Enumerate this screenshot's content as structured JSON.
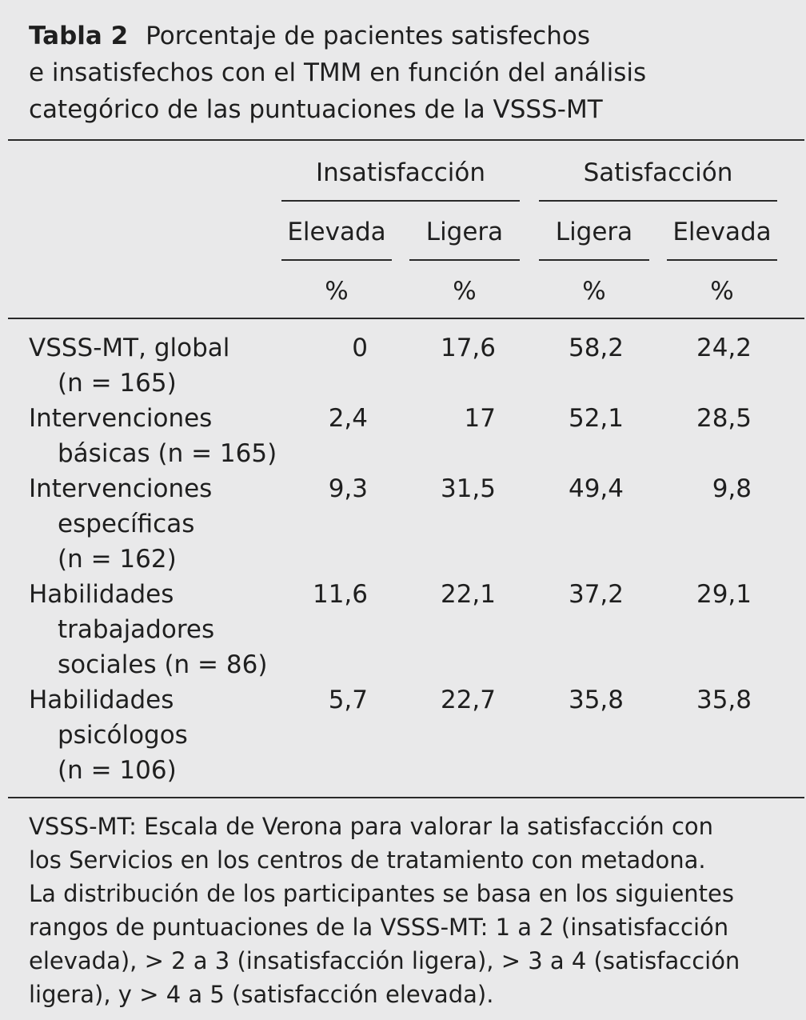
{
  "caption": {
    "label": "Tabla 2",
    "line1": "Porcentaje de pacientes satisfechos",
    "line2": "e insatisfechos con el TMM en función del análisis",
    "line3": "categórico de las puntuaciones de la VSSS-MT"
  },
  "header": {
    "group_insatisfaccion": "Insatisfacción",
    "group_satisfaccion": "Satisfacción",
    "col1": "Elevada",
    "col2": "Ligera",
    "col3": "Ligera",
    "col4": "Elevada",
    "unit1": "%",
    "unit2": "%",
    "unit3": "%",
    "unit4": "%"
  },
  "rows": [
    {
      "l1": "VSSS-MT, global",
      "l2": "(n = 165)",
      "l3": "",
      "v": [
        "0",
        "17,6",
        "58,2",
        "24,2"
      ]
    },
    {
      "l1": "Intervenciones",
      "l2": "básicas (n = 165)",
      "l3": "",
      "v": [
        "2,4",
        "17",
        "52,1",
        "28,5"
      ]
    },
    {
      "l1": "Intervenciones",
      "l2": "específicas",
      "l3": "(n = 162)",
      "v": [
        "9,3",
        "31,5",
        "49,4",
        "9,8"
      ]
    },
    {
      "l1": "Habilidades",
      "l2": "trabajadores",
      "l3": "sociales (n = 86)",
      "v": [
        "11,6",
        "22,1",
        "37,2",
        "29,1"
      ]
    },
    {
      "l1": "Habilidades",
      "l2": "psicólogos",
      "l3": "(n = 106)",
      "v": [
        "5,7",
        "22,7",
        "35,8",
        "35,8"
      ]
    }
  ],
  "note": {
    "line1": "VSSS-MT: Escala de Verona para valorar la satisfacción con",
    "line2": "los Servicios en los centros de tratamiento con metadona.",
    "line3": "La distribución de los participantes se basa en los siguientes",
    "line4": "rangos de puntuaciones de la VSSS-MT: 1 a 2 (insatisfacción",
    "line5": "elevada), > 2 a 3 (insatisfacción ligera), > 3 a 4 (satisfacción",
    "line6": "ligera), y > 4 a 5 (satisfacción elevada)."
  }
}
